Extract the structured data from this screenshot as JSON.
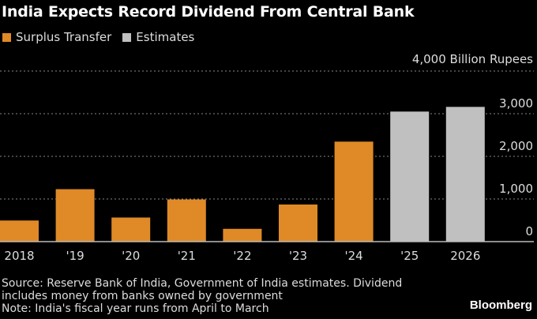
{
  "title": "India Expects Record Dividend From Central Bank",
  "colors": {
    "actual": "#DF8A27",
    "estimate": "#C0C0C0",
    "grid": "#888888",
    "baseline": "#BBBBBB",
    "text": "#DDDDDD"
  },
  "legend": [
    {
      "label": "Surplus Transfer",
      "color_key": "actual"
    },
    {
      "label": "Estimates",
      "color_key": "estimate"
    }
  ],
  "footer": {
    "lines": [
      "Source: Reserve Bank of India, Government of India estimates. Dividend",
      "includes money from banks owned by government",
      "Note: India's fiscal year runs from April to March"
    ],
    "brand": "Bloomberg"
  },
  "chart_data": {
    "type": "bar",
    "title": "India Expects Record Dividend From Central Bank",
    "xlabel": "",
    "ylabel": "Billion Rupees",
    "unit_label": "4,000 Billion Rupees",
    "ylim": [
      0,
      4000
    ],
    "yticks": [
      0,
      1000,
      2000,
      3000,
      4000
    ],
    "ytick_labels": [
      "0",
      "1,000",
      "2,000",
      "3,000",
      ""
    ],
    "grid": true,
    "legend_position": "top-left",
    "categories": [
      "2018",
      "'19",
      "'20",
      "'21",
      "'22",
      "'23",
      "'24",
      "'25",
      "2026"
    ],
    "series": [
      {
        "name": "Surplus Transfer",
        "values": [
          495,
          1230,
          565,
          990,
          300,
          870,
          2345,
          null,
          null
        ]
      },
      {
        "name": "Estimates",
        "values": [
          null,
          null,
          null,
          null,
          null,
          null,
          null,
          3050,
          3160
        ]
      }
    ]
  }
}
